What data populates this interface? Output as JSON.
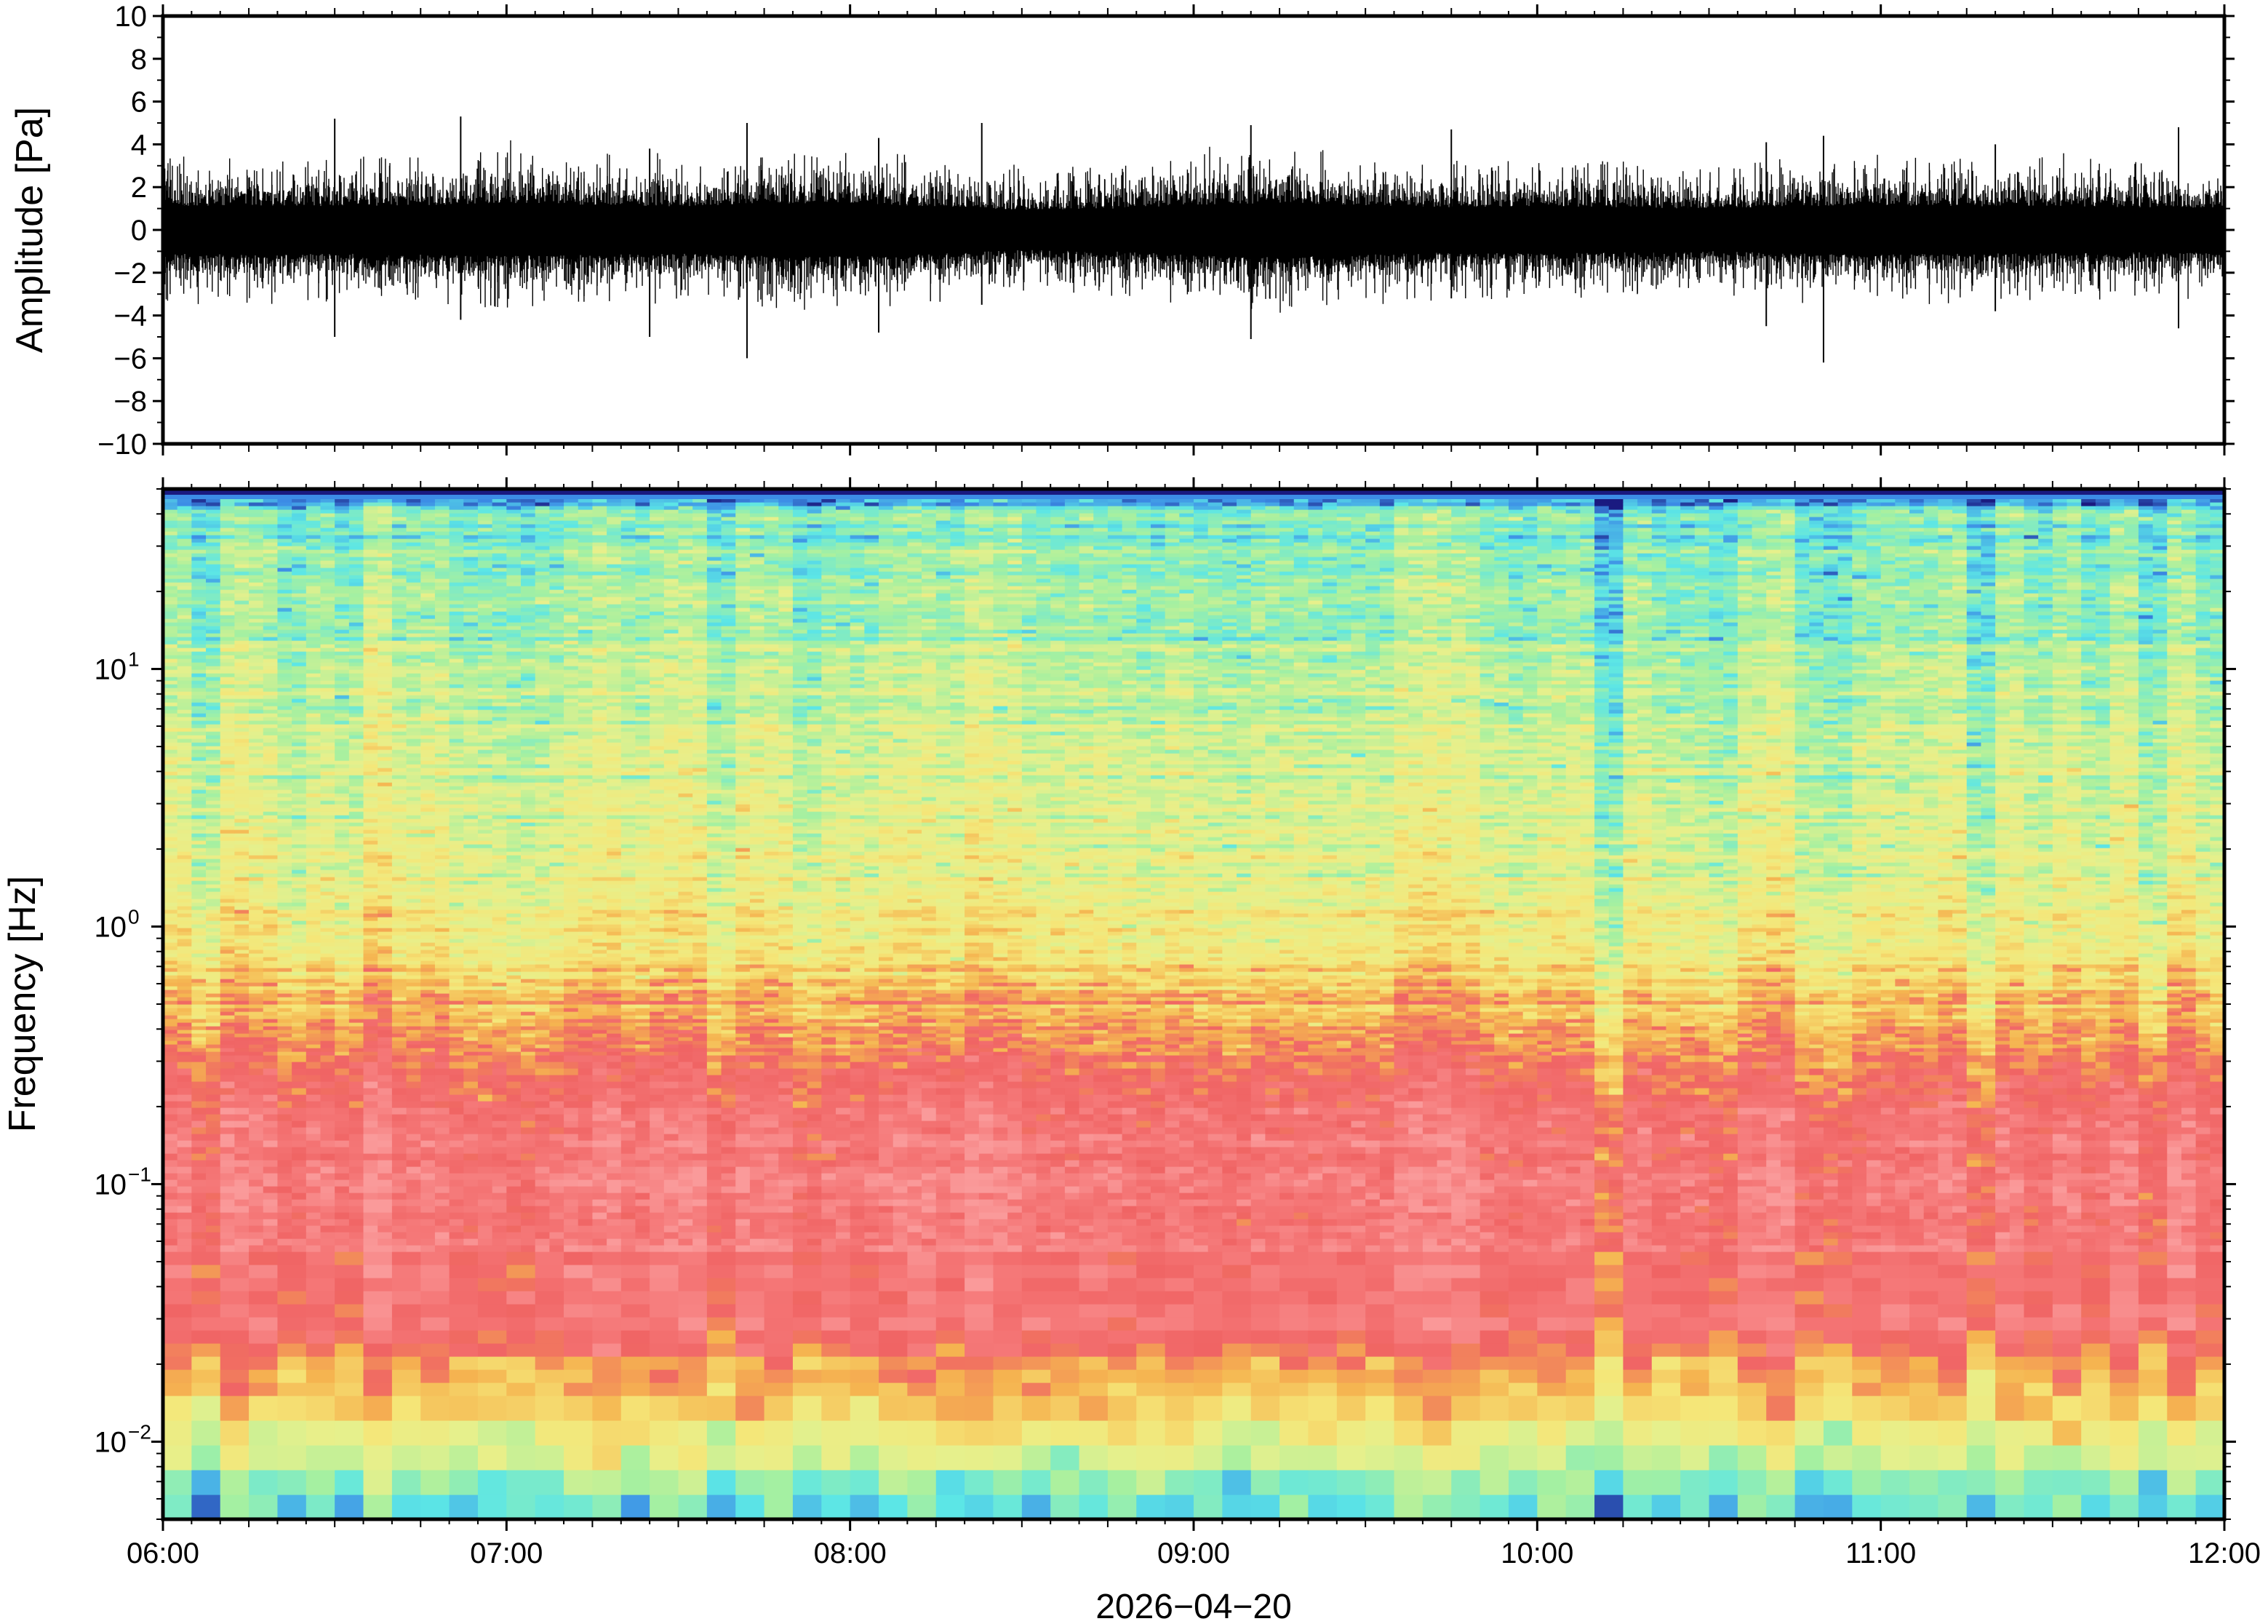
{
  "chart_data": [
    {
      "type": "line",
      "panel": "waveform",
      "ylabel": "Amplitude [Pa]",
      "ylim": [
        -10,
        10
      ],
      "yticks": [
        -10,
        -8,
        -6,
        -4,
        -2,
        0,
        2,
        4,
        6,
        8,
        10
      ],
      "yticks_labels": [
        "−10",
        "−8",
        "−6",
        "−4",
        "−2",
        "0",
        "2",
        "4",
        "6",
        "8",
        "10"
      ],
      "x_range": [
        "06:00",
        "12:00"
      ],
      "line_color": "#000000",
      "envelope": {
        "times": [
          "06:00",
          "06:15",
          "06:30",
          "06:45",
          "07:00",
          "07:15",
          "07:30",
          "07:45",
          "08:00",
          "08:15",
          "08:30",
          "08:45",
          "09:00",
          "09:15",
          "09:30",
          "09:45",
          "10:00",
          "10:15",
          "10:30",
          "10:45",
          "11:00",
          "11:15",
          "11:30",
          "11:45",
          "12:00"
        ],
        "typical_abs_amplitude_pa": [
          2.0,
          2.1,
          2.0,
          2.1,
          2.2,
          2.1,
          2.0,
          2.2,
          2.2,
          2.0,
          1.7,
          1.8,
          2.1,
          2.3,
          2.1,
          1.9,
          2.0,
          1.9,
          1.8,
          2.0,
          2.1,
          2.0,
          2.0,
          1.9,
          1.9
        ]
      },
      "spikes": [
        {
          "time": "06:30",
          "max": 5.2,
          "min": -5.0
        },
        {
          "time": "06:52",
          "max": 5.3,
          "min": -4.2
        },
        {
          "time": "07:25",
          "max": 3.8,
          "min": -5.0
        },
        {
          "time": "07:42",
          "max": 5.0,
          "min": -6.0
        },
        {
          "time": "08:05",
          "max": 4.3,
          "min": -4.8
        },
        {
          "time": "08:23",
          "max": 5.0,
          "min": -3.5
        },
        {
          "time": "09:10",
          "max": 4.9,
          "min": -5.1
        },
        {
          "time": "09:45",
          "max": 4.7,
          "min": -3.2
        },
        {
          "time": "10:40",
          "max": 4.1,
          "min": -4.5
        },
        {
          "time": "10:50",
          "max": 4.4,
          "min": -6.2
        },
        {
          "time": "11:20",
          "max": 4.0,
          "min": -3.8
        },
        {
          "time": "11:52",
          "max": 4.8,
          "min": -4.6
        }
      ]
    },
    {
      "type": "heatmap",
      "panel": "spectrogram",
      "ylabel": "Frequency [Hz]",
      "yscale": "log",
      "ylim": [
        0.005,
        50
      ],
      "yticks": [
        0.01,
        0.1,
        1,
        10
      ],
      "yticks_labels": [
        [
          "10",
          "−2"
        ],
        [
          "10",
          "−1"
        ],
        [
          "10",
          "0"
        ],
        [
          "10",
          "1"
        ]
      ],
      "xlabel": "2026−04−20",
      "x_range": [
        "06:00",
        "12:00"
      ],
      "xticks": [
        "06:00",
        "07:00",
        "08:00",
        "09:00",
        "10:00",
        "11:00",
        "12:00"
      ],
      "colormap_stops": [
        "#1a1a80",
        "#3c8ce6",
        "#5ce6e6",
        "#a6f0a0",
        "#e6f08c",
        "#f5e678",
        "#f5b450",
        "#f06464",
        "#f57878",
        "#fa9a9a"
      ],
      "profile": {
        "frequency_hz": [
          0.005,
          0.007,
          0.01,
          0.014,
          0.02,
          0.03,
          0.05,
          0.1,
          0.2,
          0.3,
          0.5,
          1,
          2,
          5,
          10,
          20,
          40,
          48
        ],
        "relative_level": [
          0.25,
          0.36,
          0.46,
          0.56,
          0.74,
          0.86,
          0.88,
          0.92,
          0.86,
          0.78,
          0.66,
          0.52,
          0.47,
          0.44,
          0.39,
          0.34,
          0.28,
          0.05
        ],
        "colors": [
          "#5ce6e6",
          "#a6f0a0",
          "#e6f08c",
          "#f5e678",
          "#f5b450",
          "#f06464",
          "#f57878",
          "#fa9a9a",
          "#f57878",
          "#f06464",
          "#f5b450",
          "#f5e678",
          "#e6f08c",
          "#d8ee8c",
          "#a6f0a0",
          "#7ee8c8",
          "#6ee0e0",
          "#1a1a80"
        ]
      }
    }
  ]
}
